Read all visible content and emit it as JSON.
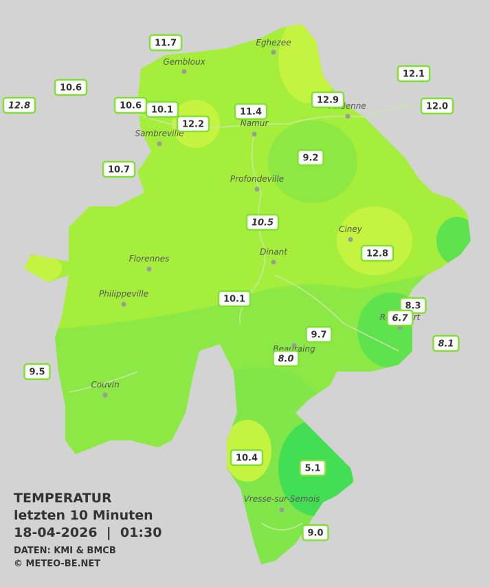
{
  "title": "TEMPERATUR",
  "subtitle": "letzten 10 Minuten",
  "timestamp": "18-04-2026  |  01:30",
  "source": "DATEN: KMI & BMCB",
  "copyright": "© METEO-BE.NET",
  "towns": [
    "Eghezee",
    "Gembloux",
    "Andenne",
    "Namur",
    "Sambreville",
    "Profondeville",
    "Ciney",
    "Dinant",
    "Florennes",
    "Philippeville",
    "Rochefort",
    "Beauraing",
    "Couvin",
    "Vresse-sur-Semois"
  ],
  "stations": [
    "11.7",
    "10.6",
    "12.8",
    "10.6",
    "10.1",
    "12.2",
    "11.4",
    "12.9",
    "12.1",
    "12.0",
    "10.7",
    "9.2",
    "10.5",
    "12.8",
    "10.1",
    "8.3",
    "6.7",
    "9.7",
    "8.1",
    "8.0",
    "9.5",
    "10.4",
    "5.1",
    "9.0"
  ]
}
